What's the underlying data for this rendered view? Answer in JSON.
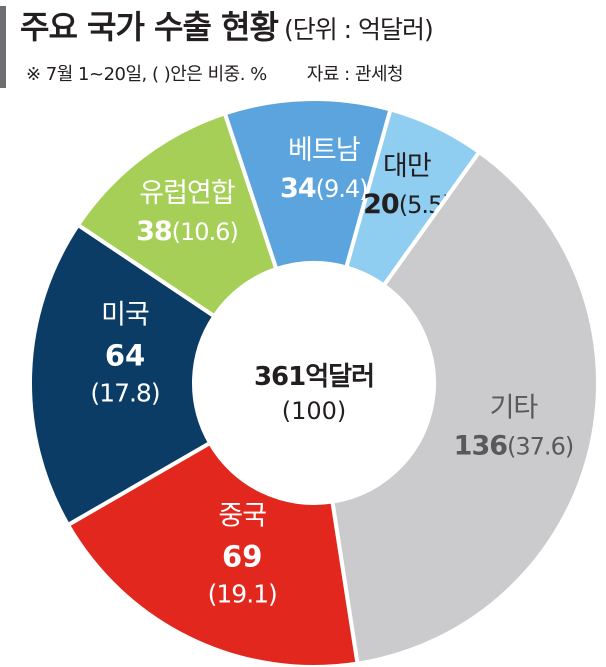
{
  "header": {
    "title": "주요 국가 수출 현황",
    "unit": "(단위 : 억달러)",
    "note": "※ 7월 1~20일, (   )안은 비중. %",
    "source": "자료 : 관세청"
  },
  "chart_data": {
    "type": "pie",
    "variant": "donut",
    "center_label": "361억달러",
    "center_sub": "(100)",
    "total": 361,
    "slices": [
      {
        "name": "미국",
        "value": 64,
        "share": 17.8,
        "value_label": "64",
        "share_label": "(17.8)",
        "color": "#0b3c66",
        "text_color": "#ffffff"
      },
      {
        "name": "유럽연합",
        "value": 38,
        "share": 10.6,
        "value_label": "38",
        "share_label": "(10.6)",
        "color": "#a6cf57",
        "text_color": "#ffffff"
      },
      {
        "name": "베트남",
        "value": 34,
        "share": 9.4,
        "value_label": "34",
        "share_label": "(9.4)",
        "color": "#5ba4dd",
        "text_color": "#ffffff"
      },
      {
        "name": "대만",
        "value": 20,
        "share": 5.5,
        "value_label": "20",
        "share_label": "(5.5)",
        "color": "#8fcdf1",
        "text_color": "#231f20"
      },
      {
        "name": "기타",
        "value": 136,
        "share": 37.6,
        "value_label": "136",
        "share_label": "(37.6)",
        "color": "#cbcbcd",
        "text_color": "#595959"
      },
      {
        "name": "중국",
        "value": 69,
        "share": 19.1,
        "value_label": "69",
        "share_label": "(19.1)",
        "color": "#e2281e",
        "text_color": "#ffffff"
      }
    ]
  }
}
